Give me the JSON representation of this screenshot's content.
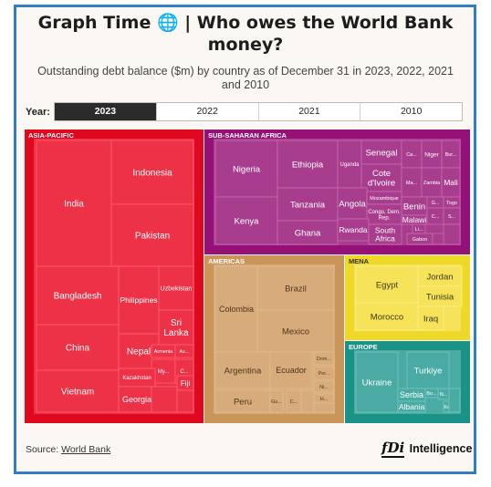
{
  "header": {
    "title_line1": "Graph Time 🌐 | Who owes the World Bank",
    "title_line2": "money?",
    "subtitle": "Outstanding debt balance ($m) by country as of December 31 in 2023, 2022, 2021 and 2010"
  },
  "year_selector": {
    "label": "Year:",
    "options": [
      "2023",
      "2022",
      "2021",
      "2010"
    ],
    "selected": "2023"
  },
  "footer": {
    "source_prefix": "Source: ",
    "source_link": "World Bank",
    "logo_mark": "fDi",
    "logo_text": "Intelligence"
  },
  "chart_data": {
    "type": "treemap",
    "year": "2023",
    "groups": [
      {
        "name": "ASIA-PACIFIC",
        "color": "#ed3147",
        "border": "#e0081f",
        "countries": [
          "India",
          "Indonesia",
          "Pakistan",
          "Bangladesh",
          "Philippines",
          "Uzbekistan",
          "Sri Lanka",
          "China",
          "Nepal",
          "Armenia",
          "Az...",
          "My...",
          "C...",
          "Vietnam",
          "Kazakhstan",
          "Fiji",
          "Georgia"
        ]
      },
      {
        "name": "SUB-SAHARAN AFRICA",
        "color": "#a83d8e",
        "border": "#951177",
        "countries": [
          "Nigeria",
          "Ethiopia",
          "Uganda",
          "Senegal",
          "Ca...",
          "Niger",
          "Bur...",
          "Cote d'Ivoire",
          "Ma...",
          "Zambia",
          "Mali",
          "Kenya",
          "Tanzania",
          "Angola",
          "Mozambique",
          "Benin",
          "G...",
          "Togo",
          "Congo, Dem. Rep.",
          "Malawi",
          "C...",
          "S...",
          "Ghana",
          "Rwanda",
          "South Africa",
          "Li...",
          "Gabon"
        ]
      },
      {
        "name": "AMERICAS",
        "color": "#d8ab7b",
        "border": "#c99559",
        "countries": [
          "Brazil",
          "Colombia",
          "Mexico",
          "Argentina",
          "Ecuador",
          "Dom...",
          "Per...",
          "Ni...",
          "H...",
          "Peru",
          "Gu...",
          "C..."
        ]
      },
      {
        "name": "MENA",
        "color": "#f7e35a",
        "border": "#efd928",
        "countries": [
          "Egypt",
          "Jordan",
          "Tunisia",
          "Morocco",
          "Iraq"
        ]
      },
      {
        "name": "EUROPE",
        "color": "#49aba3",
        "border": "#1b9288",
        "countries": [
          "Ukraine",
          "Turkiye",
          "Serbia",
          "Bo...",
          "Albania",
          "N...",
          "Ko..."
        ]
      }
    ]
  }
}
